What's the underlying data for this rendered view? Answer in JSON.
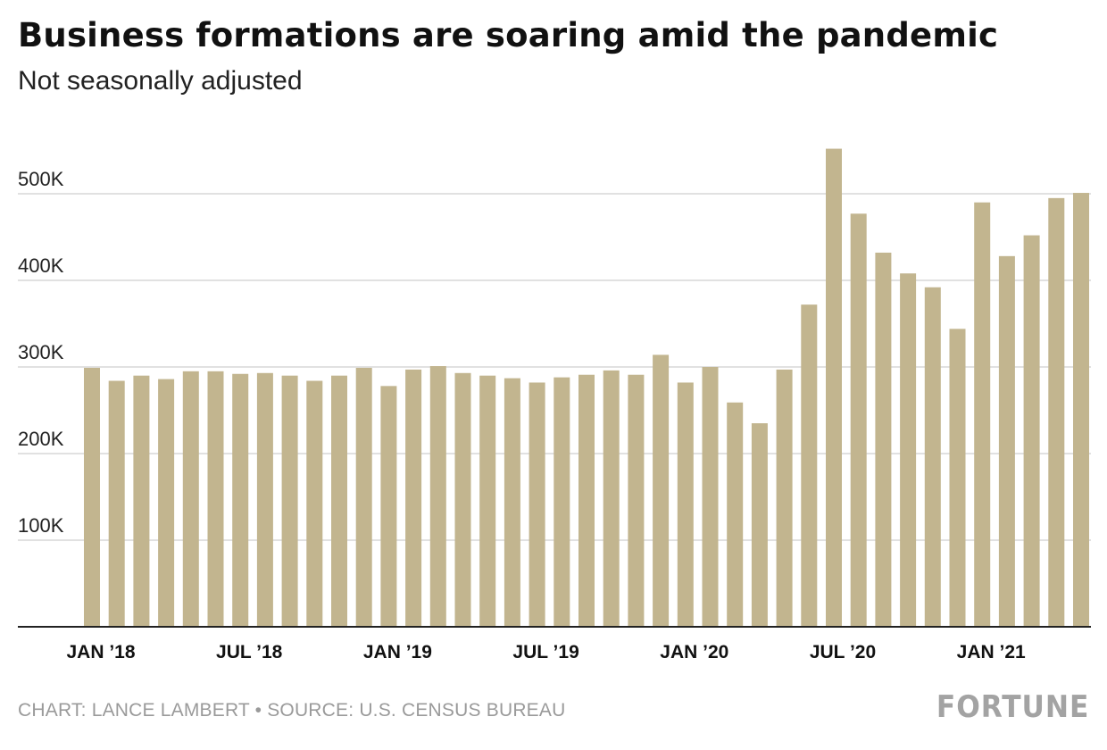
{
  "chart_data": {
    "type": "bar",
    "title": "Business formations are soaring amid the pandemic",
    "subtitle": "Not seasonally adjusted",
    "xlabel": "",
    "ylabel": "",
    "ylim": [
      0,
      560000
    ],
    "y_ticks": [
      {
        "value": 100000,
        "label": "100K"
      },
      {
        "value": 200000,
        "label": "200K"
      },
      {
        "value": 300000,
        "label": "300K"
      },
      {
        "value": 400000,
        "label": "400K"
      },
      {
        "value": 500000,
        "label": "500K"
      }
    ],
    "x_tick_labels": [
      {
        "category": "2018-01",
        "label": "JAN ’18"
      },
      {
        "category": "2018-07",
        "label": "JUL ’18"
      },
      {
        "category": "2019-01",
        "label": "JAN ’19"
      },
      {
        "category": "2019-07",
        "label": "JUL ’19"
      },
      {
        "category": "2020-01",
        "label": "JAN ’20"
      },
      {
        "category": "2020-07",
        "label": "JUL ’20"
      },
      {
        "category": "2021-01",
        "label": "JAN ’21"
      }
    ],
    "grid": true,
    "bar_color": "#c2b58f",
    "categories": [
      "2018-01",
      "2018-02",
      "2018-03",
      "2018-04",
      "2018-05",
      "2018-06",
      "2018-07",
      "2018-08",
      "2018-09",
      "2018-10",
      "2018-11",
      "2018-12",
      "2019-01",
      "2019-02",
      "2019-03",
      "2019-04",
      "2019-05",
      "2019-06",
      "2019-07",
      "2019-08",
      "2019-09",
      "2019-10",
      "2019-11",
      "2019-12",
      "2020-01",
      "2020-02",
      "2020-03",
      "2020-04",
      "2020-05",
      "2020-06",
      "2020-07",
      "2020-08",
      "2020-09",
      "2020-10",
      "2020-11",
      "2020-12",
      "2021-01",
      "2021-02",
      "2021-03",
      "2021-04",
      "2021-05"
    ],
    "values": [
      299000,
      284000,
      290000,
      286000,
      295000,
      295000,
      292000,
      293000,
      290000,
      284000,
      290000,
      299000,
      278000,
      297000,
      301000,
      293000,
      290000,
      287000,
      282000,
      288000,
      291000,
      296000,
      291000,
      314000,
      282000,
      300000,
      259000,
      235000,
      297000,
      372000,
      552000,
      477000,
      432000,
      408000,
      392000,
      344000,
      490000,
      428000,
      452000,
      495000,
      501000
    ]
  },
  "footer": {
    "source": "CHART: LANCE LAMBERT • SOURCE: U.S. CENSUS BUREAU",
    "logo": "FORTUNE"
  }
}
